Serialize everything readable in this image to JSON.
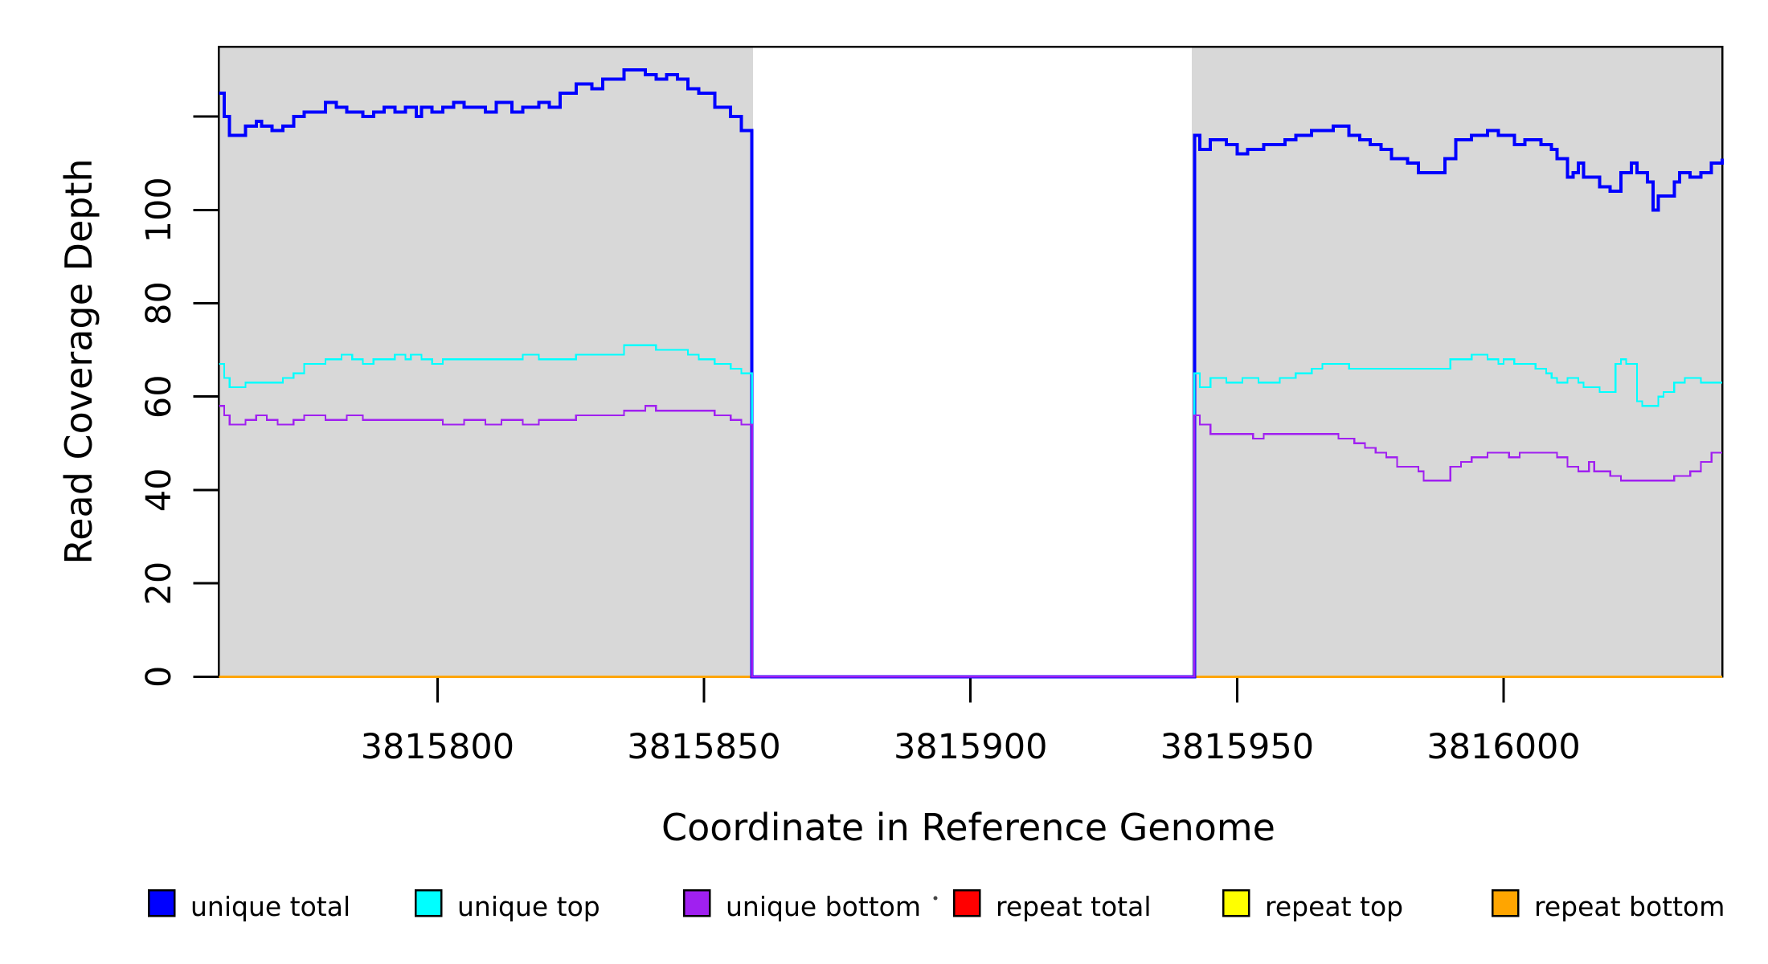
{
  "page": {
    "background": "#ffffff"
  },
  "colors": {
    "plot_shade": "#d8d8d8",
    "axis": "#000000",
    "unique_total": "#0000ff",
    "unique_top": "#00ffff",
    "unique_bottom": "#a020f0",
    "repeat_total": "#ff0000",
    "repeat_top": "#ffff00",
    "repeat_bottom": "#ffa500"
  },
  "legend": {
    "entries": [
      {
        "label": "unique total",
        "color": "#0000ff"
      },
      {
        "label": "unique top",
        "color": "#00ffff"
      },
      {
        "label": "unique bottom",
        "color": "#a020f0"
      },
      {
        "label": "repeat total",
        "color": "#ff0000"
      },
      {
        "label": "repeat top",
        "color": "#ffff00"
      },
      {
        "label": "repeat bottom",
        "color": "#ffa500"
      }
    ]
  },
  "chart_data": {
    "type": "line",
    "subtype": "step",
    "title": "",
    "xlabel": "Coordinate in Reference Genome",
    "ylabel": "Read Coverage Depth",
    "xlim": [
      3815759,
      3816041
    ],
    "ylim": [
      0,
      135
    ],
    "grid": false,
    "legend_position": "bottom",
    "x_ticks": [
      {
        "value": 3815800,
        "label": "3815800"
      },
      {
        "value": 3815850,
        "label": "3815850"
      },
      {
        "value": 3815900,
        "label": "3815900"
      },
      {
        "value": 3815950,
        "label": "3815950"
      },
      {
        "value": 3816000,
        "label": "3816000"
      }
    ],
    "y_ticks": [
      {
        "value": 0,
        "label": "0"
      },
      {
        "value": 20,
        "label": "20"
      },
      {
        "value": 40,
        "label": "40"
      },
      {
        "value": 60,
        "label": "60"
      },
      {
        "value": 80,
        "label": "80"
      },
      {
        "value": 100,
        "label": "100"
      },
      {
        "value": 120,
        "label": ""
      }
    ],
    "shaded_regions": [
      {
        "x0": 3815759,
        "x1": 3815859.2,
        "color": "#d8d8d8"
      },
      {
        "x0": 3815941.5,
        "x1": 3816041,
        "color": "#d8d8d8"
      }
    ],
    "coverage_gap": {
      "x0": 3815859,
      "x1": 3815941.5,
      "value": 0
    },
    "series": [
      {
        "name": "repeat total",
        "color": "#ff0000",
        "width": 2.5,
        "data": [
          [
            3815759,
            0
          ],
          [
            3816041,
            0
          ]
        ]
      },
      {
        "name": "repeat top",
        "color": "#ffff00",
        "width": 2.5,
        "data": [
          [
            3815759,
            0
          ],
          [
            3816041,
            0
          ]
        ]
      },
      {
        "name": "repeat bottom",
        "color": "#ffa500",
        "width": 3,
        "data": [
          [
            3815759,
            0
          ],
          [
            3816041,
            0
          ]
        ]
      },
      {
        "name": "unique total",
        "color": "#0000ff",
        "width": 4,
        "data": [
          [
            3815759,
            125
          ],
          [
            3815760,
            120
          ],
          [
            3815761,
            116
          ],
          [
            3815764,
            118
          ],
          [
            3815766,
            119
          ],
          [
            3815767,
            118
          ],
          [
            3815769,
            117
          ],
          [
            3815771,
            118
          ],
          [
            3815773,
            120
          ],
          [
            3815775,
            121
          ],
          [
            3815779,
            123
          ],
          [
            3815781,
            122
          ],
          [
            3815783,
            121
          ],
          [
            3815786,
            120
          ],
          [
            3815788,
            121
          ],
          [
            3815790,
            122
          ],
          [
            3815792,
            121
          ],
          [
            3815794,
            122
          ],
          [
            3815796,
            120
          ],
          [
            3815797,
            122
          ],
          [
            3815799,
            121
          ],
          [
            3815801,
            122
          ],
          [
            3815803,
            123
          ],
          [
            3815805,
            122
          ],
          [
            3815809,
            121
          ],
          [
            3815811,
            123
          ],
          [
            3815814,
            121
          ],
          [
            3815816,
            122
          ],
          [
            3815819,
            123
          ],
          [
            3815821,
            122
          ],
          [
            3815823,
            125
          ],
          [
            3815826,
            127
          ],
          [
            3815829,
            126
          ],
          [
            3815831,
            128
          ],
          [
            3815835,
            130
          ],
          [
            3815839,
            129
          ],
          [
            3815841,
            128
          ],
          [
            3815843,
            129
          ],
          [
            3815845,
            128
          ],
          [
            3815847,
            126
          ],
          [
            3815849,
            125
          ],
          [
            3815852,
            122
          ],
          [
            3815855,
            120
          ],
          [
            3815857,
            117
          ],
          [
            3815859,
            0
          ],
          [
            3815942,
            116
          ],
          [
            3815943,
            113
          ],
          [
            3815945,
            115
          ],
          [
            3815948,
            114
          ],
          [
            3815950,
            112
          ],
          [
            3815952,
            113
          ],
          [
            3815955,
            114
          ],
          [
            3815959,
            115
          ],
          [
            3815961,
            116
          ],
          [
            3815964,
            117
          ],
          [
            3815968,
            118
          ],
          [
            3815971,
            116
          ],
          [
            3815973,
            115
          ],
          [
            3815975,
            114
          ],
          [
            3815977,
            113
          ],
          [
            3815979,
            111
          ],
          [
            3815982,
            110
          ],
          [
            3815984,
            108
          ],
          [
            3815989,
            111
          ],
          [
            3815991,
            115
          ],
          [
            3815994,
            116
          ],
          [
            3815997,
            117
          ],
          [
            3815999,
            116
          ],
          [
            3816002,
            114
          ],
          [
            3816004,
            115
          ],
          [
            3816007,
            114
          ],
          [
            3816009,
            113
          ],
          [
            3816010,
            111
          ],
          [
            3816012,
            107
          ],
          [
            3816013,
            108
          ],
          [
            3816014,
            110
          ],
          [
            3816015,
            107
          ],
          [
            3816018,
            105
          ],
          [
            3816020,
            104
          ],
          [
            3816022,
            108
          ],
          [
            3816024,
            110
          ],
          [
            3816025,
            108
          ],
          [
            3816027,
            106
          ],
          [
            3816028,
            100
          ],
          [
            3816029,
            103
          ],
          [
            3816032,
            106
          ],
          [
            3816033,
            108
          ],
          [
            3816035,
            107
          ],
          [
            3816037,
            108
          ],
          [
            3816039,
            110
          ],
          [
            3816041,
            111
          ]
        ]
      },
      {
        "name": "unique top",
        "color": "#00ffff",
        "width": 2.2,
        "data": [
          [
            3815759,
            67
          ],
          [
            3815760,
            64
          ],
          [
            3815761,
            62
          ],
          [
            3815764,
            63
          ],
          [
            3815767,
            63
          ],
          [
            3815769,
            63
          ],
          [
            3815771,
            64
          ],
          [
            3815773,
            65
          ],
          [
            3815775,
            67
          ],
          [
            3815779,
            68
          ],
          [
            3815782,
            69
          ],
          [
            3815784,
            68
          ],
          [
            3815786,
            67
          ],
          [
            3815788,
            68
          ],
          [
            3815790,
            68
          ],
          [
            3815792,
            69
          ],
          [
            3815794,
            68
          ],
          [
            3815795,
            69
          ],
          [
            3815797,
            68
          ],
          [
            3815799,
            67
          ],
          [
            3815801,
            68
          ],
          [
            3815805,
            68
          ],
          [
            3815809,
            68
          ],
          [
            3815814,
            68
          ],
          [
            3815816,
            69
          ],
          [
            3815819,
            68
          ],
          [
            3815823,
            68
          ],
          [
            3815826,
            69
          ],
          [
            3815831,
            69
          ],
          [
            3815835,
            71
          ],
          [
            3815839,
            71
          ],
          [
            3815841,
            70
          ],
          [
            3815845,
            70
          ],
          [
            3815847,
            69
          ],
          [
            3815849,
            68
          ],
          [
            3815852,
            67
          ],
          [
            3815855,
            66
          ],
          [
            3815857,
            65
          ],
          [
            3815859,
            0
          ],
          [
            3815942,
            65
          ],
          [
            3815943,
            62
          ],
          [
            3815945,
            64
          ],
          [
            3815948,
            63
          ],
          [
            3815951,
            64
          ],
          [
            3815954,
            63
          ],
          [
            3815958,
            64
          ],
          [
            3815961,
            65
          ],
          [
            3815964,
            66
          ],
          [
            3815966,
            67
          ],
          [
            3815971,
            66
          ],
          [
            3815975,
            66
          ],
          [
            3815980,
            66
          ],
          [
            3815985,
            66
          ],
          [
            3815990,
            68
          ],
          [
            3815994,
            69
          ],
          [
            3815997,
            68
          ],
          [
            3815999,
            67
          ],
          [
            3816000,
            68
          ],
          [
            3816002,
            67
          ],
          [
            3816006,
            66
          ],
          [
            3816008,
            65
          ],
          [
            3816009,
            64
          ],
          [
            3816010,
            63
          ],
          [
            3816012,
            64
          ],
          [
            3816014,
            63
          ],
          [
            3816015,
            62
          ],
          [
            3816018,
            61
          ],
          [
            3816021,
            67
          ],
          [
            3816022,
            68
          ],
          [
            3816023,
            67
          ],
          [
            3816025,
            59
          ],
          [
            3816026,
            58
          ],
          [
            3816029,
            60
          ],
          [
            3816030,
            61
          ],
          [
            3816032,
            63
          ],
          [
            3816034,
            64
          ],
          [
            3816037,
            63
          ],
          [
            3816041,
            63
          ]
        ]
      },
      {
        "name": "unique bottom",
        "color": "#a020f0",
        "width": 2.2,
        "data": [
          [
            3815759,
            58
          ],
          [
            3815760,
            56
          ],
          [
            3815761,
            54
          ],
          [
            3815764,
            55
          ],
          [
            3815766,
            56
          ],
          [
            3815768,
            55
          ],
          [
            3815770,
            54
          ],
          [
            3815773,
            55
          ],
          [
            3815775,
            56
          ],
          [
            3815779,
            55
          ],
          [
            3815783,
            56
          ],
          [
            3815786,
            55
          ],
          [
            3815790,
            55
          ],
          [
            3815794,
            55
          ],
          [
            3815799,
            55
          ],
          [
            3815801,
            54
          ],
          [
            3815805,
            55
          ],
          [
            3815809,
            54
          ],
          [
            3815812,
            55
          ],
          [
            3815816,
            54
          ],
          [
            3815819,
            55
          ],
          [
            3815823,
            55
          ],
          [
            3815826,
            56
          ],
          [
            3815831,
            56
          ],
          [
            3815835,
            57
          ],
          [
            3815839,
            58
          ],
          [
            3815841,
            57
          ],
          [
            3815845,
            57
          ],
          [
            3815849,
            57
          ],
          [
            3815852,
            56
          ],
          [
            3815855,
            55
          ],
          [
            3815857,
            54
          ],
          [
            3815859,
            0
          ],
          [
            3815942,
            56
          ],
          [
            3815943,
            54
          ],
          [
            3815945,
            52
          ],
          [
            3815947,
            52
          ],
          [
            3815951,
            52
          ],
          [
            3815953,
            51
          ],
          [
            3815955,
            52
          ],
          [
            3815960,
            52
          ],
          [
            3815965,
            52
          ],
          [
            3815967,
            52
          ],
          [
            3815969,
            51
          ],
          [
            3815972,
            50
          ],
          [
            3815974,
            49
          ],
          [
            3815976,
            48
          ],
          [
            3815978,
            47
          ],
          [
            3815980,
            45
          ],
          [
            3815982,
            45
          ],
          [
            3815984,
            44
          ],
          [
            3815985,
            42
          ],
          [
            3815990,
            45
          ],
          [
            3815992,
            46
          ],
          [
            3815994,
            47
          ],
          [
            3815997,
            48
          ],
          [
            3816001,
            47
          ],
          [
            3816003,
            48
          ],
          [
            3816007,
            48
          ],
          [
            3816010,
            47
          ],
          [
            3816012,
            45
          ],
          [
            3816014,
            44
          ],
          [
            3816016,
            46
          ],
          [
            3816017,
            44
          ],
          [
            3816020,
            43
          ],
          [
            3816022,
            42
          ],
          [
            3816026,
            42
          ],
          [
            3816029,
            42
          ],
          [
            3816032,
            43
          ],
          [
            3816035,
            44
          ],
          [
            3816037,
            46
          ],
          [
            3816039,
            48
          ],
          [
            3816041,
            48
          ]
        ]
      }
    ]
  }
}
